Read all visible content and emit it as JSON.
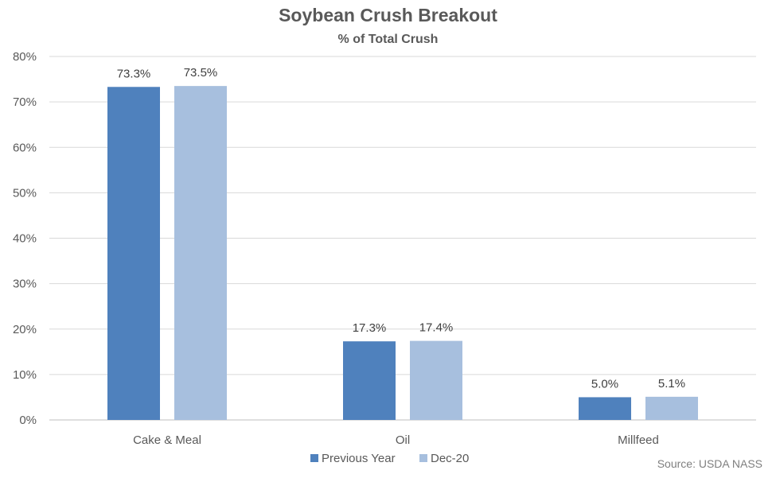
{
  "chart_data": {
    "type": "bar",
    "title": "Soybean Crush Breakout",
    "subtitle": "% of Total Crush",
    "categories": [
      "Cake & Meal",
      "Oil",
      "Millfeed"
    ],
    "series": [
      {
        "name": "Previous Year",
        "color": "#4f81bd",
        "values": [
          73.3,
          17.3,
          5.0
        ],
        "labels": [
          "73.3%",
          "17.3%",
          "5.0%"
        ]
      },
      {
        "name": "Dec-20",
        "color": "#a7bfde",
        "values": [
          73.5,
          17.4,
          5.1
        ],
        "labels": [
          "73.5%",
          "17.4%",
          "5.1%"
        ]
      }
    ],
    "ylim": [
      0,
      80
    ],
    "yticks": [
      0,
      10,
      20,
      30,
      40,
      50,
      60,
      70,
      80
    ],
    "ytick_labels": [
      "0%",
      "10%",
      "20%",
      "30%",
      "40%",
      "50%",
      "60%",
      "70%",
      "80%"
    ],
    "xlabel": "",
    "ylabel": "",
    "grid": true,
    "legend_position": "bottom",
    "source": "Source: USDA NASS"
  }
}
